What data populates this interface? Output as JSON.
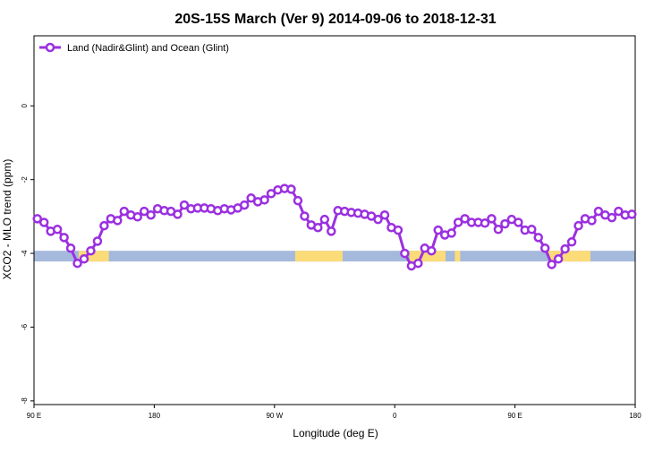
{
  "chart_data": {
    "type": "line",
    "title": "20S-15S March (Ver 9)   2014-09-06 to 2018-12-31",
    "xlabel": "Longitude (deg E)",
    "ylabel": "XCO2 - MLO trend (ppm)",
    "xlim": [
      90,
      540
    ],
    "ylim": [
      -8.1,
      1.9
    ],
    "xticks": [
      {
        "value": 90,
        "label": "90 E"
      },
      180,
      {
        "value": 270,
        "label": "90 W"
      },
      {
        "value": 360,
        "label": "0"
      },
      {
        "value": 450,
        "label": "90 E"
      },
      {
        "value": 540,
        "label": "180"
      }
    ],
    "yticks": [
      -8,
      -6,
      -4,
      -2,
      0
    ],
    "legend": "top-left",
    "x": [
      92.5,
      97.5,
      102.5,
      107.5,
      112.5,
      117.5,
      122.5,
      127.5,
      132.5,
      137.5,
      142.5,
      147.5,
      152.5,
      157.5,
      162.5,
      167.5,
      172.5,
      177.5,
      182.5,
      187.5,
      192.5,
      197.5,
      202.5,
      207.5,
      212.5,
      217.5,
      222.5,
      227.5,
      232.5,
      237.5,
      242.5,
      247.5,
      252.5,
      257.5,
      262.5,
      267.5,
      272.5,
      277.5,
      282.5,
      287.5,
      292.5,
      297.5,
      302.5,
      307.5,
      312.5,
      317.5,
      322.5,
      327.5,
      332.5,
      337.5,
      342.5,
      347.5,
      352.5,
      357.5,
      362.5,
      367.5,
      372.5,
      377.5,
      382.5,
      387.5,
      392.5,
      397.5,
      402.5,
      407.5,
      412.5,
      417.5,
      422.5,
      427.5,
      432.5,
      437.5,
      442.5,
      447.5,
      452.5,
      457.5,
      462.5,
      467.5,
      472.5,
      477.5,
      482.5,
      487.5,
      492.5,
      497.5,
      502.5,
      507.5,
      512.5,
      517.5,
      522.5,
      527.5,
      532.5,
      537.5
    ],
    "series": [
      {
        "name": "Land (Nadir&Glint) and Ocean (Glint)",
        "color": "#9b30e0",
        "values": [
          -3.06,
          -3.16,
          -3.4,
          -3.35,
          -3.57,
          -3.86,
          -4.27,
          -4.15,
          -3.93,
          -3.67,
          -3.25,
          -3.06,
          -3.11,
          -2.86,
          -2.96,
          -3.01,
          -2.86,
          -2.96,
          -2.79,
          -2.84,
          -2.86,
          -2.94,
          -2.69,
          -2.79,
          -2.77,
          -2.77,
          -2.79,
          -2.84,
          -2.79,
          -2.82,
          -2.77,
          -2.69,
          -2.5,
          -2.6,
          -2.55,
          -2.38,
          -2.28,
          -2.24,
          -2.26,
          -2.57,
          -2.99,
          -3.23,
          -3.3,
          -3.08,
          -3.4,
          -2.84,
          -2.86,
          -2.89,
          -2.91,
          -2.94,
          -2.99,
          -3.08,
          -2.96,
          -3.3,
          -3.37,
          -4.0,
          -4.34,
          -4.27,
          -3.86,
          -3.93,
          -3.37,
          -3.5,
          -3.45,
          -3.16,
          -3.06,
          -3.16,
          -3.16,
          -3.18,
          -3.06,
          -3.35,
          -3.2,
          -3.08,
          -3.16,
          -3.37,
          -3.35,
          -3.57,
          -3.86,
          -4.3,
          -4.15,
          -3.88,
          -3.69,
          -3.25,
          -3.06,
          -3.11,
          -2.86,
          -2.96,
          -3.03,
          -2.86,
          -2.96,
          -2.94
        ]
      }
    ],
    "surface_band": {
      "ylim": [
        -4.22,
        -3.93
      ],
      "ocean_color": "#a4b9dc",
      "land_color": "#fcdc78",
      "land_ranges": [
        [
          123.5,
          146
        ],
        [
          285.5,
          321
        ],
        [
          371,
          398
        ],
        [
          405,
          409
        ],
        [
          475,
          506.5
        ]
      ]
    }
  }
}
